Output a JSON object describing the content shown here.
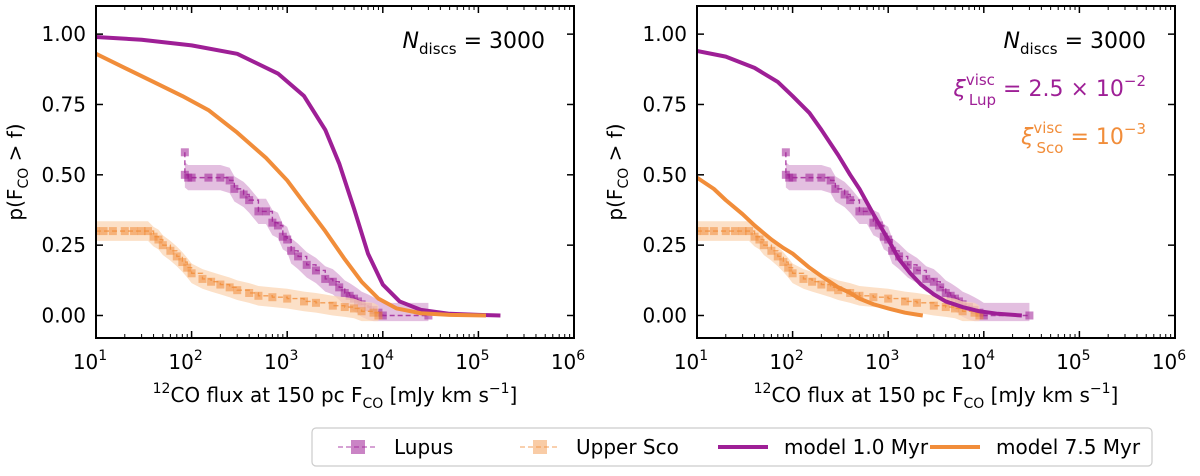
{
  "colors": {
    "lupus": "#9e1f96",
    "upper_sco": "#f18d3a",
    "lupus_band": "#d9a9d6",
    "upper_sco_band": "#fbd6b4"
  },
  "legend": {
    "lupus": "Lupus",
    "upper_sco": "Upper Sco",
    "model_young": "model 1.0 Myr",
    "model_old": "model 7.5 Myr"
  },
  "chart_data": [
    {
      "type": "line",
      "panel": "left",
      "xscale": "log",
      "xlim": [
        10,
        1000000
      ],
      "ylim": [
        -0.08,
        1.1
      ],
      "xlabel_main": "CO flux at 150 pc F",
      "xlabel_sup": "12",
      "xlabel_sub": "CO",
      "xlabel_units": "[mJy km s",
      "xlabel_units_sup": "−1",
      "xlabel_units_close": "]",
      "ylabel": "p(F",
      "ylabel_sub": "CO",
      "ylabel_rest": " > f)",
      "x_ticks": [
        {
          "x": 10,
          "base": "10",
          "exp": "1"
        },
        {
          "x": 100,
          "base": "10",
          "exp": "2"
        },
        {
          "x": 1000,
          "base": "10",
          "exp": "3"
        },
        {
          "x": 10000,
          "base": "10",
          "exp": "4"
        },
        {
          "x": 100000,
          "base": "10",
          "exp": "5"
        },
        {
          "x": 1000000,
          "base": "10",
          "exp": "6"
        }
      ],
      "y_ticks": [
        "0.00",
        "0.25",
        "0.50",
        "0.75",
        "1.00"
      ],
      "y_tick_values": [
        0,
        0.25,
        0.5,
        0.75,
        1.0
      ],
      "annotations": [
        {
          "text_main": "N",
          "text_sub": "discs",
          "text_rest": " = 3000",
          "color": "#000000"
        }
      ],
      "series": [
        {
          "name": "model 1.0 Myr",
          "style": "model",
          "color": "#9e1f96",
          "x": [
            10,
            30,
            100,
            300,
            800,
            1500,
            2500,
            3500,
            5000,
            7000,
            10000,
            15000,
            25000,
            50000,
            100000,
            170000
          ],
          "y": [
            0.99,
            0.98,
            0.96,
            0.93,
            0.86,
            0.78,
            0.66,
            0.54,
            0.38,
            0.22,
            0.11,
            0.05,
            0.02,
            0.006,
            0.002,
            0.0
          ]
        },
        {
          "name": "model 7.5 Myr",
          "style": "model",
          "color": "#f18d3a",
          "x": [
            10,
            20,
            40,
            80,
            150,
            300,
            600,
            1000,
            1500,
            2500,
            4000,
            6000,
            9000,
            14000,
            25000,
            50000,
            120000
          ],
          "y": [
            0.93,
            0.88,
            0.83,
            0.78,
            0.73,
            0.65,
            0.56,
            0.48,
            0.4,
            0.3,
            0.2,
            0.12,
            0.06,
            0.025,
            0.008,
            0.002,
            0.0
          ]
        },
        {
          "name": "Lupus",
          "style": "data",
          "color": "#9e1f96",
          "band": "#d9a9d6",
          "x": [
            85,
            85,
            92,
            100,
            150,
            200,
            250,
            280,
            350,
            400,
            500,
            600,
            700,
            800,
            900,
            1000,
            1100,
            1300,
            1600,
            2000,
            2500,
            3000,
            3500,
            4000,
            4500,
            5000,
            5500,
            6000,
            7000,
            8000,
            9000,
            10000,
            30000
          ],
          "y": [
            0.58,
            0.5,
            0.49,
            0.49,
            0.49,
            0.49,
            0.48,
            0.45,
            0.43,
            0.41,
            0.37,
            0.37,
            0.33,
            0.32,
            0.28,
            0.27,
            0.23,
            0.21,
            0.18,
            0.16,
            0.13,
            0.12,
            0.1,
            0.08,
            0.07,
            0.06,
            0.05,
            0.04,
            0.03,
            0.02,
            0.01,
            0.0,
            0.0
          ],
          "err": 0.045
        },
        {
          "name": "Upper Sco",
          "style": "data",
          "color": "#f18d3a",
          "band": "#fbd6b4",
          "x": [
            10,
            12,
            15,
            20,
            25,
            30,
            35,
            40,
            45,
            50,
            60,
            70,
            80,
            90,
            100,
            130,
            160,
            200,
            250,
            300,
            400,
            500,
            700,
            1000,
            1500,
            2000,
            3000,
            4000,
            5000,
            6000,
            8000,
            9000
          ],
          "y": [
            0.3,
            0.3,
            0.3,
            0.3,
            0.3,
            0.3,
            0.3,
            0.28,
            0.27,
            0.25,
            0.23,
            0.21,
            0.19,
            0.17,
            0.15,
            0.13,
            0.12,
            0.11,
            0.1,
            0.09,
            0.08,
            0.07,
            0.065,
            0.06,
            0.05,
            0.045,
            0.035,
            0.03,
            0.025,
            0.015,
            0.01,
            0.0
          ],
          "err": 0.035
        }
      ]
    },
    {
      "type": "line",
      "panel": "right",
      "xscale": "log",
      "xlim": [
        10,
        1000000
      ],
      "ylim": [
        -0.08,
        1.1
      ],
      "xlabel_main": "CO flux at 150 pc F",
      "xlabel_sup": "12",
      "xlabel_sub": "CO",
      "xlabel_units": "[mJy km s",
      "xlabel_units_sup": "−1",
      "xlabel_units_close": "]",
      "ylabel": "p(F",
      "ylabel_sub": "CO",
      "ylabel_rest": " > f)",
      "x_ticks": [
        {
          "x": 10,
          "base": "10",
          "exp": "1"
        },
        {
          "x": 100,
          "base": "10",
          "exp": "2"
        },
        {
          "x": 1000,
          "base": "10",
          "exp": "3"
        },
        {
          "x": 10000,
          "base": "10",
          "exp": "4"
        },
        {
          "x": 100000,
          "base": "10",
          "exp": "5"
        },
        {
          "x": 1000000,
          "base": "10",
          "exp": "6"
        }
      ],
      "y_ticks": [
        "0.00",
        "0.25",
        "0.50",
        "0.75",
        "1.00"
      ],
      "y_tick_values": [
        0,
        0.25,
        0.5,
        0.75,
        1.0
      ],
      "annotations": [
        {
          "text_main": "N",
          "text_sub": "discs",
          "text_rest": " = 3000",
          "color": "#000000"
        },
        {
          "text_main": "ξ",
          "text_sup": "visc",
          "text_sub": "Lup",
          "text_rest": " = 2.5 × 10",
          "text_exp": "−2",
          "color": "#9e1f96"
        },
        {
          "text_main": "ξ",
          "text_sup": "visc",
          "text_sub": "Sco",
          "text_rest": " = 10",
          "text_exp": "−3",
          "color": "#f18d3a"
        }
      ],
      "series": [
        {
          "name": "model 1.0 Myr",
          "style": "model",
          "color": "#9e1f96",
          "x": [
            10,
            20,
            40,
            70,
            100,
            150,
            200,
            300,
            400,
            500,
            700,
            1000,
            1300,
            1700,
            2200,
            3000,
            4000,
            6000,
            9000,
            14000,
            25000
          ],
          "y": [
            0.94,
            0.92,
            0.88,
            0.83,
            0.78,
            0.72,
            0.66,
            0.57,
            0.5,
            0.45,
            0.36,
            0.27,
            0.2,
            0.15,
            0.11,
            0.075,
            0.05,
            0.03,
            0.015,
            0.006,
            0.0
          ]
        },
        {
          "name": "model 7.5 Myr",
          "style": "model",
          "color": "#f18d3a",
          "x": [
            10,
            15,
            20,
            30,
            40,
            60,
            80,
            100,
            150,
            200,
            300,
            400,
            500,
            700,
            1000,
            1500,
            2000,
            2300
          ],
          "y": [
            0.49,
            0.45,
            0.41,
            0.36,
            0.32,
            0.27,
            0.24,
            0.22,
            0.17,
            0.14,
            0.1,
            0.08,
            0.06,
            0.04,
            0.025,
            0.01,
            0.003,
            0.0
          ]
        },
        {
          "name": "Lupus",
          "style": "data",
          "color": "#9e1f96",
          "band": "#d9a9d6",
          "x": [
            85,
            85,
            92,
            100,
            150,
            200,
            250,
            280,
            350,
            400,
            500,
            600,
            700,
            800,
            900,
            1000,
            1100,
            1300,
            1600,
            2000,
            2500,
            3000,
            3500,
            4000,
            4500,
            5000,
            5500,
            6000,
            7000,
            8000,
            9000,
            10000,
            30000
          ],
          "y": [
            0.58,
            0.5,
            0.49,
            0.49,
            0.49,
            0.49,
            0.48,
            0.45,
            0.43,
            0.41,
            0.37,
            0.37,
            0.33,
            0.32,
            0.28,
            0.27,
            0.23,
            0.21,
            0.18,
            0.16,
            0.13,
            0.12,
            0.1,
            0.08,
            0.07,
            0.06,
            0.05,
            0.04,
            0.03,
            0.02,
            0.01,
            0.0,
            0.0
          ],
          "err": 0.045
        },
        {
          "name": "Upper Sco",
          "style": "data",
          "color": "#f18d3a",
          "band": "#fbd6b4",
          "x": [
            10,
            12,
            15,
            20,
            25,
            30,
            35,
            40,
            45,
            50,
            60,
            70,
            80,
            90,
            100,
            130,
            160,
            200,
            250,
            300,
            400,
            500,
            700,
            1000,
            1500,
            2000,
            3000,
            4000,
            5000,
            6000,
            8000,
            9000
          ],
          "y": [
            0.3,
            0.3,
            0.3,
            0.3,
            0.3,
            0.3,
            0.3,
            0.28,
            0.27,
            0.25,
            0.23,
            0.21,
            0.19,
            0.17,
            0.15,
            0.13,
            0.12,
            0.11,
            0.1,
            0.09,
            0.08,
            0.07,
            0.065,
            0.06,
            0.05,
            0.045,
            0.035,
            0.03,
            0.025,
            0.015,
            0.01,
            0.0
          ],
          "err": 0.035
        }
      ]
    }
  ]
}
